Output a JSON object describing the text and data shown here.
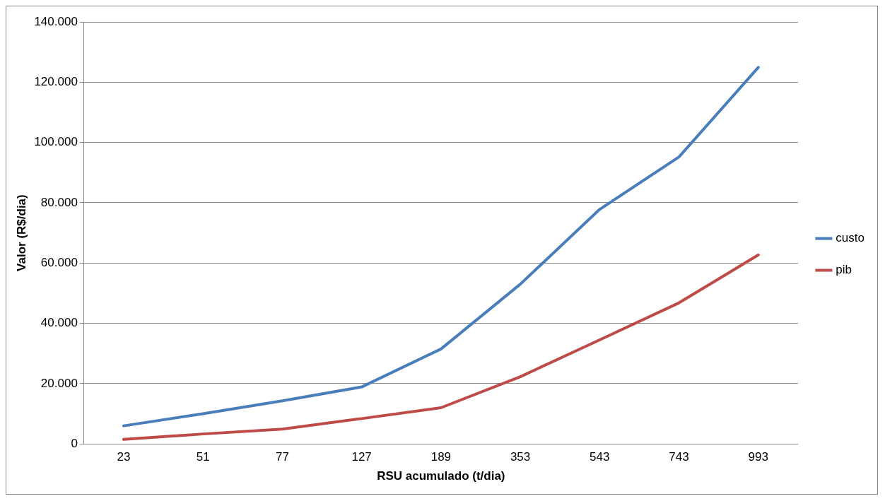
{
  "chart_data": {
    "type": "line",
    "xlabel": "RSU acumulado (t/dia)",
    "ylabel": "Valor (R$/dia)",
    "categories": [
      "23",
      "51",
      "77",
      "127",
      "189",
      "353",
      "543",
      "743",
      "993"
    ],
    "series": [
      {
        "name": "custo",
        "color": "#4a7ebb",
        "values": [
          6000,
          10000,
          14300,
          18900,
          31500,
          53000,
          77800,
          95200,
          124900
        ]
      },
      {
        "name": "pib",
        "color": "#be4b48",
        "values": [
          1500,
          3300,
          4900,
          8400,
          12000,
          22300,
          34500,
          46800,
          62700
        ]
      }
    ],
    "ylim": [
      0,
      140000
    ],
    "yticks": [
      0,
      {
        "value": 20000,
        "label": "20.000"
      },
      {
        "value": 40000,
        "label": "40.000"
      },
      {
        "value": 60000,
        "label": "60.000"
      },
      {
        "value": 80000,
        "label": "80.000"
      },
      {
        "value": 100000,
        "label": "100.000"
      },
      {
        "value": 120000,
        "label": "120.000"
      },
      {
        "value": 140000,
        "label": "140.000"
      }
    ],
    "grid": "y",
    "legend": "right",
    "marker": "none",
    "line_style": "solid"
  }
}
